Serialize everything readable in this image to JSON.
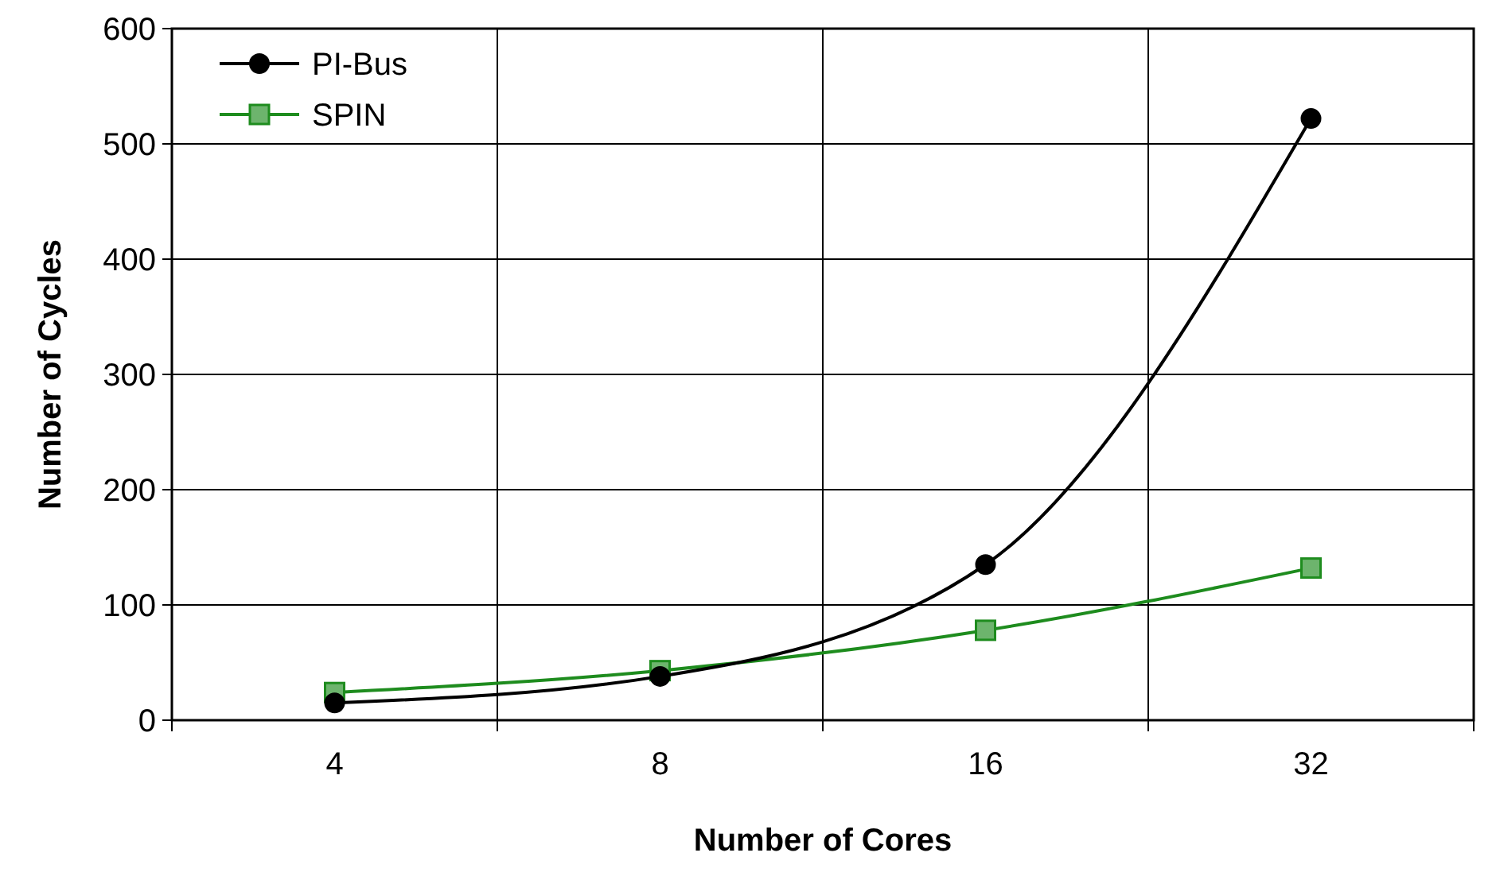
{
  "chart_data": {
    "type": "line",
    "xlabel": "Number of Cores",
    "ylabel": "Number of Cycles",
    "categories": [
      "4",
      "8",
      "16",
      "32"
    ],
    "series": [
      {
        "name": "PI-Bus",
        "color": "#000000",
        "marker": "circle",
        "values": [
          15,
          38,
          135,
          522
        ]
      },
      {
        "name": "SPIN",
        "color": "#1e8c1e",
        "marker": "square",
        "values": [
          24,
          43,
          78,
          132
        ]
      }
    ],
    "ylim": [
      0,
      600
    ],
    "yticks": [
      0,
      100,
      200,
      300,
      400,
      500,
      600
    ],
    "grid": true,
    "legend": "top left",
    "line_style": "solid"
  }
}
